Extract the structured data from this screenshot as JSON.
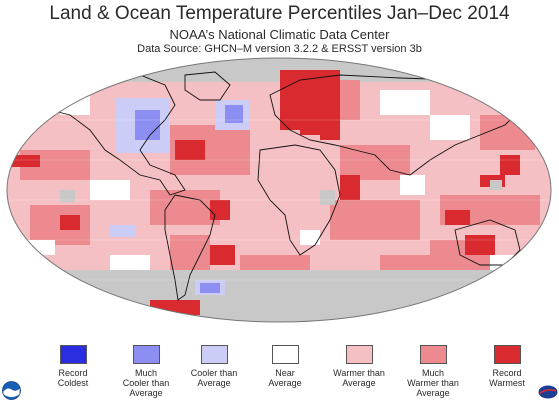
{
  "header": {
    "title": "Land & Ocean Temperature Percentiles Jan–Dec 2014",
    "subtitle": "NOAA’s National Climatic Data Center",
    "source": "Data Source: GHCN–M version 3.2.2 & ERSST version 3b"
  },
  "legend": [
    {
      "label": "Record\nColdest",
      "color": "#2a2ee0"
    },
    {
      "label": "Much\nCooler than\nAverage",
      "color": "#8c8ef2"
    },
    {
      "label": "Cooler than\nAverage",
      "color": "#cccdf7"
    },
    {
      "label": "Near\nAverage",
      "color": "#ffffff"
    },
    {
      "label": "Warmer than\nAverage",
      "color": "#f5c0c3"
    },
    {
      "label": "Much\nWarmer than\nAverage",
      "color": "#ec8a8f"
    },
    {
      "label": "Record\nWarmest",
      "color": "#d92a2f"
    }
  ],
  "map": {
    "ocean_no_data_color": "#c8c8c8",
    "base_color": "#f5c0c3",
    "logos": [
      "noaa-logo",
      "nasa-logo"
    ]
  }
}
